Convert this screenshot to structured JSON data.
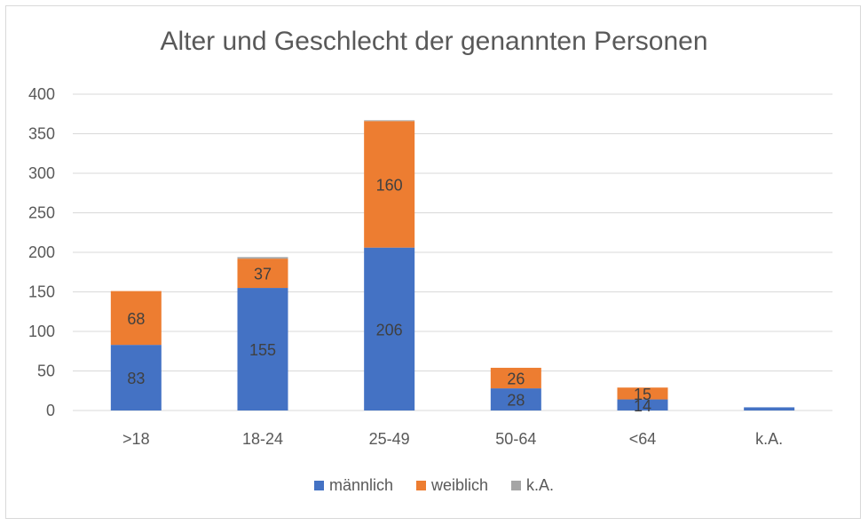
{
  "chart_data": {
    "type": "bar",
    "stacked": true,
    "title": "Alter und Geschlecht der genannten Personen",
    "xlabel": "",
    "ylabel": "",
    "categories": [
      ">18",
      "18-24",
      "25-49",
      "50-64",
      "<64",
      "k.A."
    ],
    "series": [
      {
        "name": "männlich",
        "color": "#4472c4",
        "values": [
          83,
          155,
          206,
          28,
          14,
          4
        ],
        "labels": [
          "83",
          "155",
          "206",
          "28",
          "14",
          ""
        ]
      },
      {
        "name": "weiblich",
        "color": "#ed7d31",
        "values": [
          68,
          37,
          160,
          26,
          15,
          0
        ],
        "labels": [
          "68",
          "37",
          "160",
          "26",
          "15",
          ""
        ]
      },
      {
        "name": "k.A.",
        "color": "#a5a5a5",
        "values": [
          0,
          2,
          1,
          0,
          0,
          0
        ],
        "labels": [
          "",
          "",
          "",
          "",
          "",
          ""
        ]
      }
    ],
    "ylim": [
      0,
      400
    ],
    "yticks": [
      0,
      50,
      100,
      150,
      200,
      250,
      300,
      350,
      400
    ],
    "grid": true,
    "legend_position": "bottom"
  }
}
